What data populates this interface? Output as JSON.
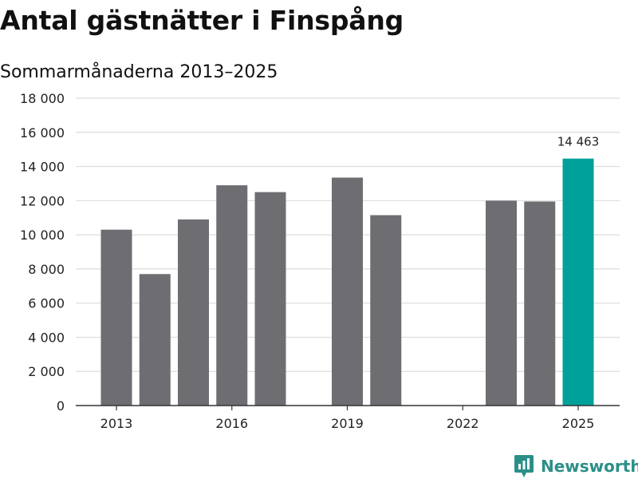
{
  "header": {
    "title": "Antal gästnätter i Finspång",
    "subtitle": "Sommarmånaderna 2013–2025"
  },
  "brand": {
    "name": "Newsworthy",
    "logo_icon": "bar-chart-speech-bubble-icon"
  },
  "colors": {
    "bar": "#6e6d72",
    "highlight": "#00a19a",
    "grid": "#dcdcdc",
    "axis": "#333333",
    "brand": "#2b8f88"
  },
  "chart_data": {
    "type": "bar",
    "title": "Antal gästnätter i Finspång",
    "subtitle": "Sommarmånaderna 2013–2025",
    "xlabel": "",
    "ylabel": "",
    "categories": [
      "2013",
      "2014",
      "2015",
      "2016",
      "2017",
      "2018",
      "2019",
      "2020",
      "2021",
      "2022",
      "2023",
      "2024",
      "2025"
    ],
    "values": [
      10300,
      7700,
      10900,
      12900,
      12500,
      null,
      13350,
      11150,
      null,
      null,
      12000,
      11950,
      14463
    ],
    "highlight_category": "2025",
    "data_labels": [
      {
        "category": "2025",
        "text": "14 463"
      }
    ],
    "ylim": [
      0,
      18000
    ],
    "yticks": [
      0,
      2000,
      4000,
      6000,
      8000,
      10000,
      12000,
      14000,
      16000,
      18000
    ],
    "ytick_labels": [
      "0",
      "2 000",
      "4 000",
      "6 000",
      "8 000",
      "10 000",
      "12 000",
      "14 000",
      "16 000",
      "18 000"
    ],
    "xtick_labels": [
      "2013",
      "2016",
      "2019",
      "2022",
      "2025"
    ],
    "grid": true,
    "legend": "none"
  }
}
